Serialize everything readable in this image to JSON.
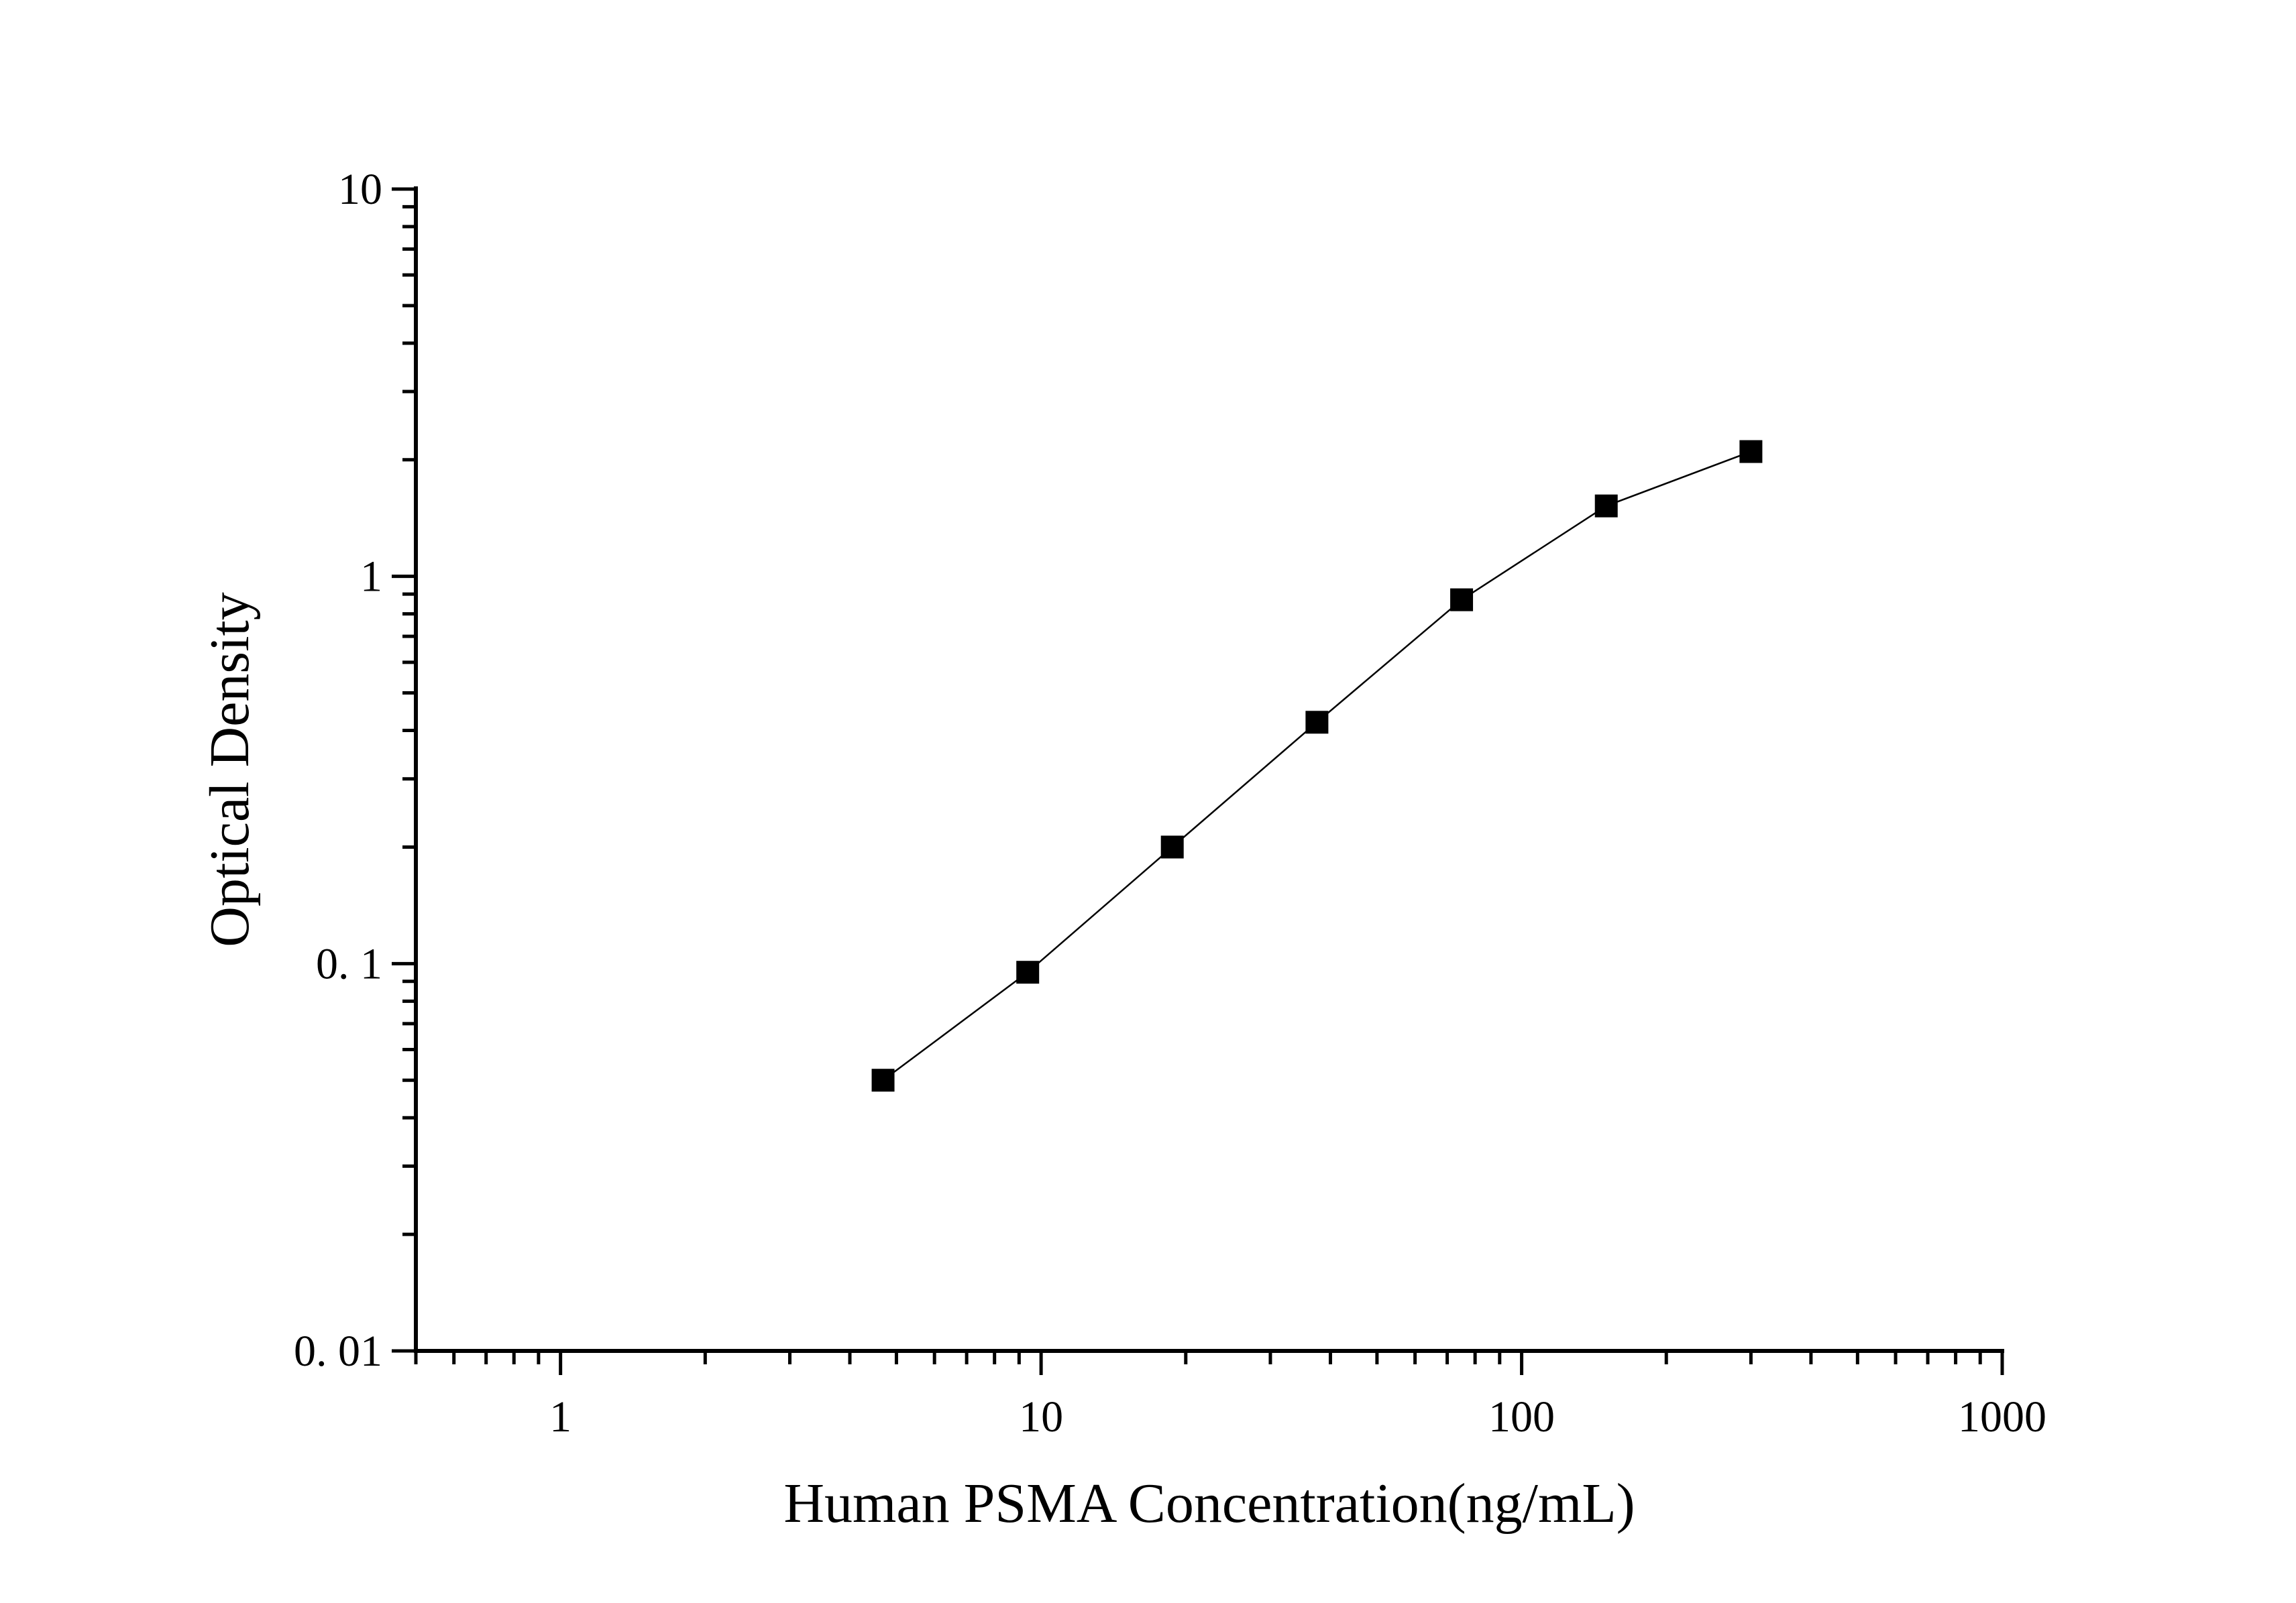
{
  "chart_data": {
    "type": "scatter",
    "title": "",
    "xlabel": "Human PSMA Concentration(ng/mL)",
    "ylabel": "Optical Density",
    "x_scale": "log",
    "y_scale": "log",
    "xlim": [
      0.5,
      1000
    ],
    "ylim": [
      0.01,
      10
    ],
    "x_ticks": [
      {
        "value": 1,
        "label": "1"
      },
      {
        "value": 10,
        "label": "10"
      },
      {
        "value": 100,
        "label": "100"
      },
      {
        "value": 1000,
        "label": "1000"
      }
    ],
    "y_ticks": [
      {
        "value": 0.01,
        "label": "0. 01"
      },
      {
        "value": 0.1,
        "label": "0. 1"
      },
      {
        "value": 1,
        "label": "1"
      },
      {
        "value": 10,
        "label": "10"
      }
    ],
    "grid": false,
    "legend": "none",
    "marker": "square",
    "color": "#000000",
    "series": [
      {
        "x": [
          4.69,
          9.38,
          18.75,
          37.5,
          75,
          150,
          300
        ],
        "y": [
          0.05,
          0.095,
          0.2,
          0.42,
          0.87,
          1.52,
          2.1
        ]
      }
    ]
  }
}
